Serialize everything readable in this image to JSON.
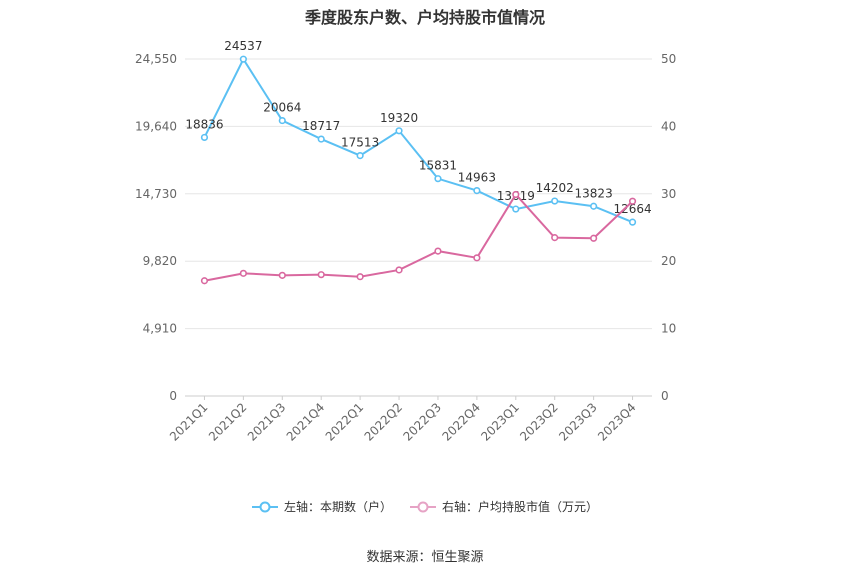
{
  "colors": {
    "left_series": "#5bc0f3",
    "right_series": "#d9689f",
    "grid": "#e6e6e6",
    "axis_text": "#666666"
  },
  "chart_data": {
    "type": "line",
    "title": "季度股东户数、户均持股市值情况",
    "categories": [
      "2021Q1",
      "2021Q2",
      "2021Q3",
      "2021Q4",
      "2022Q1",
      "2022Q2",
      "2022Q3",
      "2022Q4",
      "2023Q1",
      "2023Q2",
      "2023Q3",
      "2023Q4"
    ],
    "left_axis": {
      "ticks": [
        "0",
        "4,910",
        "9,820",
        "14,730",
        "19,640",
        "24,550"
      ],
      "range": [
        0,
        24550
      ]
    },
    "right_axis": {
      "ticks": [
        "0",
        "10",
        "20",
        "30",
        "40",
        "50"
      ],
      "range": [
        0,
        50
      ]
    },
    "series": [
      {
        "name": "左轴：本期数（户）",
        "axis": "left",
        "values": [
          18836,
          24537,
          20064,
          18717,
          17513,
          19320,
          15831,
          14963,
          13619,
          14202,
          13823,
          12664
        ],
        "labels": [
          "18836",
          "24537",
          "20064",
          "18717",
          "17513",
          "19320",
          "15831",
          "14963",
          "13619",
          "14202",
          "13823",
          "12664"
        ]
      },
      {
        "name": "右轴：户均持股市值（万元）",
        "axis": "right",
        "values": [
          17.1,
          18.2,
          17.9,
          18.0,
          17.7,
          18.7,
          21.5,
          20.5,
          29.9,
          23.5,
          23.4,
          28.9
        ]
      }
    ],
    "grid": true,
    "legend_position": "bottom"
  },
  "source": "数据来源：恒生聚源"
}
